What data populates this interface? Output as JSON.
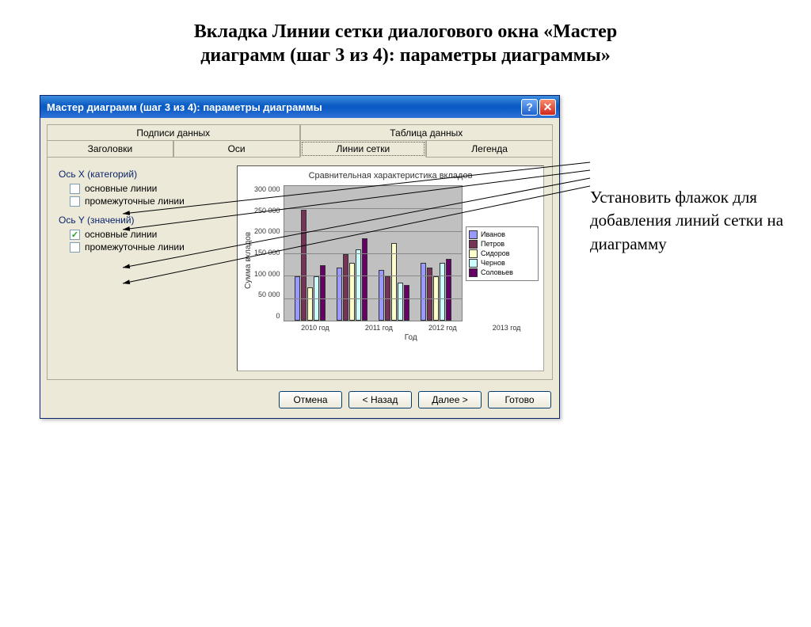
{
  "page_title_line1": "Вкладка Линии сетки диалогового окна «Мастер",
  "page_title_line2": "диаграмм (шаг 3 из 4): параметры диаграммы»",
  "annotation": "Установить флажок для добавления линий сетки на диаграмму",
  "dialog": {
    "title": "Мастер диаграмм (шаг 3 из 4): параметры диаграммы",
    "tabs_back": [
      "Подписи данных",
      "Таблица данных"
    ],
    "tabs_front": [
      "Заголовки",
      "Оси",
      "Линии сетки",
      "Легенда"
    ],
    "active_tab_index": 2,
    "group_x": "Ось X (категорий)",
    "group_y": "Ось Y (значений)",
    "cb_major_x": {
      "label": "основные линии",
      "checked": false
    },
    "cb_minor_x": {
      "label": "промежуточные линии",
      "checked": false
    },
    "cb_major_y": {
      "label": "основные линии",
      "checked": true
    },
    "cb_minor_y": {
      "label": "промежуточные линии",
      "checked": false
    },
    "buttons": {
      "cancel": "Отмена",
      "back": "< Назад",
      "next": "Далее >",
      "finish": "Готово"
    }
  },
  "chart": {
    "type": "bar",
    "title": "Сравнительная характеристика вкладов",
    "ylabel": "Сумма вкладов",
    "xlabel": "Год",
    "categories": [
      "2010 год",
      "2011 год",
      "2012 год",
      "2013 год"
    ],
    "series": [
      {
        "name": "Иванов",
        "color": "#9999ff"
      },
      {
        "name": "Петров",
        "color": "#773355"
      },
      {
        "name": "Сидоров",
        "color": "#ffffcc"
      },
      {
        "name": "Чернов",
        "color": "#ccffff"
      },
      {
        "name": "Соловьев",
        "color": "#660066"
      }
    ],
    "values": [
      [
        100000,
        250000,
        75000,
        100000,
        125000
      ],
      [
        120000,
        150000,
        130000,
        160000,
        185000
      ],
      [
        115000,
        100000,
        175000,
        85000,
        80000
      ],
      [
        130000,
        120000,
        100000,
        130000,
        140000
      ]
    ],
    "ylim": [
      0,
      300000
    ],
    "ytick_step": 50000,
    "yticks": [
      "300 000",
      "250 000",
      "200 000",
      "150 000",
      "100 000",
      "50 000",
      "0"
    ],
    "plot_bg": "#c0c0c0",
    "grid_color": "#888888"
  },
  "colors": {
    "titlebar_gradient_from": "#3c8cde",
    "titlebar_gradient_to": "#0a5bc4",
    "dialog_bg": "#ece9d8",
    "group_label": "#0a246a"
  }
}
